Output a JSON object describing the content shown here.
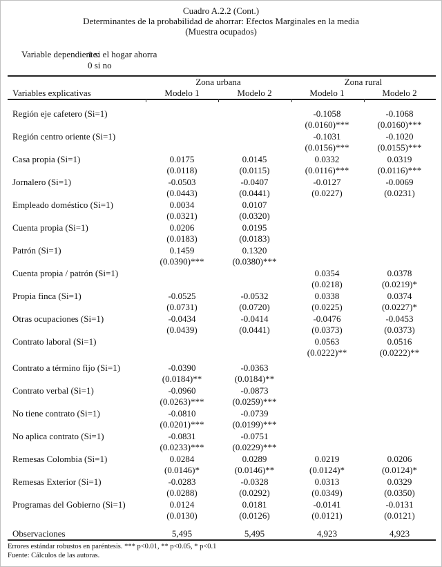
{
  "title": {
    "line1": "Cuadro A.2.2 (Cont.)",
    "line2": "Determinantes de la probabilidad de ahorrar: Efectos Marginales en la media",
    "line3": "(Muestra ocupados)"
  },
  "dependent": {
    "label": "Variable dependiente:",
    "value_line1": "1 si el hogar ahorra",
    "value_line2": "0 si no"
  },
  "table": {
    "left_header": "Variables explicativas",
    "groups": [
      "Zona urbana",
      "Zona rural"
    ],
    "model_headers": [
      "Modelo 1",
      "Modelo 2",
      "Modelo 1",
      "Modelo 2"
    ],
    "rows": [
      {
        "label": "Región eje cafetero (Si=1)",
        "cells": [
          [
            "",
            ""
          ],
          [
            "",
            ""
          ],
          [
            "-0.1058",
            "(0.0160)***"
          ],
          [
            "-0.1068",
            "(0.0160)***"
          ]
        ]
      },
      {
        "label": "Región centro oriente (Si=1)",
        "cells": [
          [
            "",
            ""
          ],
          [
            "",
            ""
          ],
          [
            "-0.1031",
            "(0.0156)***"
          ],
          [
            "-0.1020",
            "(0.0155)***"
          ]
        ]
      },
      {
        "label": "Casa propia (Si=1)",
        "cells": [
          [
            "0.0175",
            "(0.0118)"
          ],
          [
            "0.0145",
            "(0.0115)"
          ],
          [
            "0.0332",
            "(0.0116)***"
          ],
          [
            "0.0319",
            "(0.0116)***"
          ]
        ]
      },
      {
        "label": "Jornalero (Si=1)",
        "cells": [
          [
            "-0.0503",
            "(0.0443)"
          ],
          [
            "-0.0407",
            "(0.0441)"
          ],
          [
            "-0.0127",
            "(0.0227)"
          ],
          [
            "-0.0069",
            "(0.0231)"
          ]
        ]
      },
      {
        "label": "Empleado doméstico (Si=1)",
        "cells": [
          [
            "0.0034",
            "(0.0321)"
          ],
          [
            "0.0107",
            "(0.0320)"
          ],
          [
            "",
            ""
          ],
          [
            "",
            ""
          ]
        ]
      },
      {
        "label": "Cuenta propia (Si=1)",
        "cells": [
          [
            "0.0206",
            "(0.0183)"
          ],
          [
            "0.0195",
            "(0.0183)"
          ],
          [
            "",
            ""
          ],
          [
            "",
            ""
          ]
        ]
      },
      {
        "label": "Patrón (Si=1)",
        "cells": [
          [
            "0.1459",
            "(0.0390)***"
          ],
          [
            "0.1320",
            "(0.0380)***"
          ],
          [
            "",
            ""
          ],
          [
            "",
            ""
          ]
        ]
      },
      {
        "label": "Cuenta propia / patrón (Si=1)",
        "cells": [
          [
            "",
            ""
          ],
          [
            "",
            ""
          ],
          [
            "0.0354",
            "(0.0218)"
          ],
          [
            "0.0378",
            "(0.0219)*"
          ]
        ]
      },
      {
        "label": "Propia finca (Si=1)",
        "cells": [
          [
            "-0.0525",
            "(0.0731)"
          ],
          [
            "-0.0532",
            "(0.0720)"
          ],
          [
            "0.0338",
            "(0.0225)"
          ],
          [
            "0.0374",
            "(0.0227)*"
          ]
        ]
      },
      {
        "label": "Otras ocupaciones (Si=1)",
        "cells": [
          [
            "-0.0434",
            "(0.0439)"
          ],
          [
            "-0.0414",
            "(0.0441)"
          ],
          [
            "-0.0476",
            "(0.0373)"
          ],
          [
            "-0.0453",
            "(0.0373)"
          ]
        ]
      },
      {
        "label": "Contrato laboral (Si=1)",
        "spacer": true,
        "cells": [
          [
            "",
            ""
          ],
          [
            "",
            ""
          ],
          [
            "0.0563",
            "(0.0222)**"
          ],
          [
            "0.0516",
            "(0.0222)**"
          ]
        ]
      },
      {
        "label": "Contrato a término fijo (Si=1)",
        "cells": [
          [
            "-0.0390",
            "(0.0184)**"
          ],
          [
            "-0.0363",
            "(0.0184)**"
          ],
          [
            "",
            ""
          ],
          [
            "",
            ""
          ]
        ]
      },
      {
        "label": "Contrato verbal (Si=1)",
        "cells": [
          [
            "-0.0960",
            "(0.0263)***"
          ],
          [
            "-0.0873",
            "(0.0259)***"
          ],
          [
            "",
            ""
          ],
          [
            "",
            ""
          ]
        ]
      },
      {
        "label": "No tiene contrato (Si=1)",
        "cells": [
          [
            "-0.0810",
            "(0.0201)***"
          ],
          [
            "-0.0739",
            "(0.0199)***"
          ],
          [
            "",
            ""
          ],
          [
            "",
            ""
          ]
        ]
      },
      {
        "label": "No aplica contrato (Si=1)",
        "cells": [
          [
            "-0.0831",
            "(0.0233)***"
          ],
          [
            "-0.0751",
            "(0.0229)***"
          ],
          [
            "",
            ""
          ],
          [
            "",
            ""
          ]
        ]
      },
      {
        "label": "Remesas Colombia (Si=1)",
        "cells": [
          [
            "0.0284",
            "(0.0146)*"
          ],
          [
            "0.0289",
            "(0.0146)**"
          ],
          [
            "0.0219",
            "(0.0124)*"
          ],
          [
            "0.0206",
            "(0.0124)*"
          ]
        ]
      },
      {
        "label": "Remesas Exterior (Si=1)",
        "cells": [
          [
            "-0.0283",
            "(0.0288)"
          ],
          [
            "-0.0328",
            "(0.0292)"
          ],
          [
            "0.0313",
            "(0.0349)"
          ],
          [
            "0.0329",
            "(0.0350)"
          ]
        ]
      },
      {
        "label": "Programas del Gobierno (Si=1)",
        "cells": [
          [
            "0.0124",
            "(0.0130)"
          ],
          [
            "0.0181",
            "(0.0126)"
          ],
          [
            "-0.0141",
            "(0.0121)"
          ],
          [
            "-0.0131",
            "(0.0121)"
          ]
        ]
      }
    ],
    "observations": {
      "label": "Observaciones",
      "values": [
        "5,495",
        "5,495",
        "4,923",
        "4,923"
      ]
    }
  },
  "footnotes": {
    "line1": "Errores estándar robustos en paréntesis. *** p<0.01, ** p<0.05, * p<0.1",
    "line2": "Fuente: Cálculos de las autoras."
  }
}
